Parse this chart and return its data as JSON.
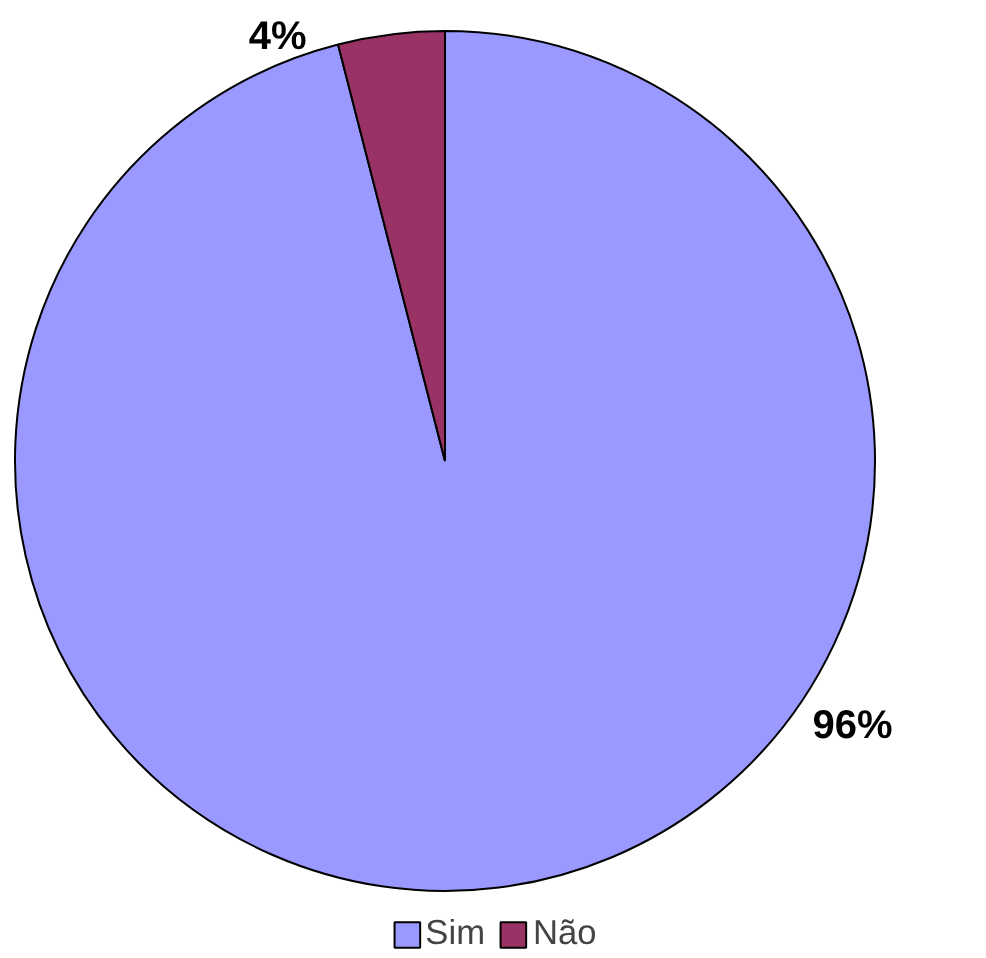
{
  "chart_data": {
    "type": "pie",
    "categories": [
      "Sim",
      "Não"
    ],
    "values": [
      96,
      4
    ],
    "colors": [
      "#9999ff",
      "#993366"
    ],
    "value_labels": [
      "96%",
      "4%"
    ],
    "legend": "bottom"
  }
}
